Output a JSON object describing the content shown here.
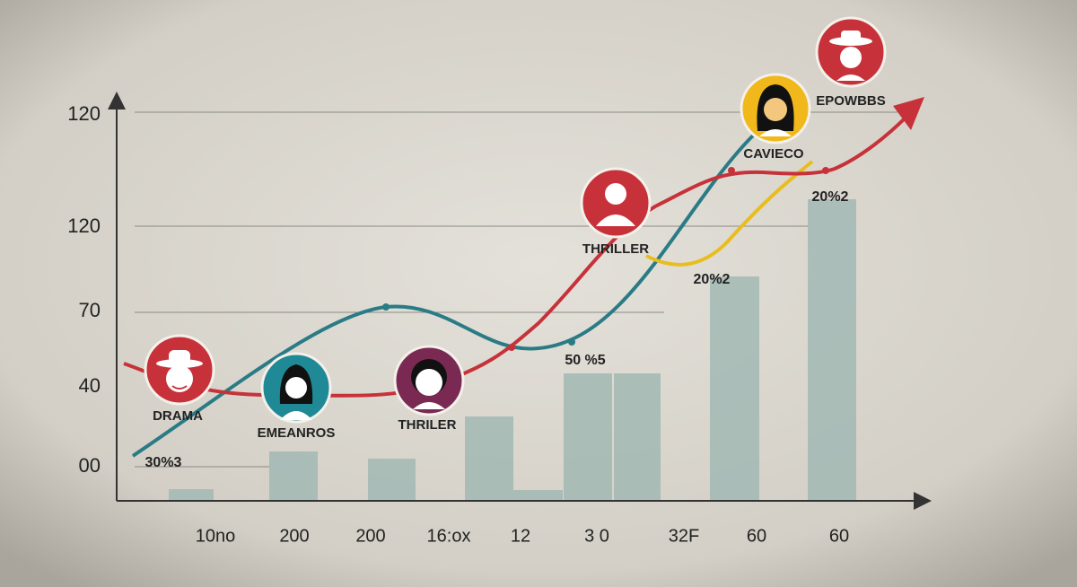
{
  "y_axis": {
    "labels": [
      "120",
      "120",
      "70",
      "40",
      "00"
    ]
  },
  "x_axis": {
    "labels": [
      "10no",
      "200",
      "200",
      "16:ox",
      "12",
      "3 0",
      "32F",
      "60",
      "60"
    ]
  },
  "nodes": [
    {
      "label": "DRAMA"
    },
    {
      "label": "EMEANROS"
    },
    {
      "label": "THRILER"
    },
    {
      "label": "THRILLER"
    },
    {
      "label": "CAVIECO"
    },
    {
      "label": "EPOWBBS"
    }
  ],
  "annotations": [
    "30%3",
    "50 %5",
    "20%2",
    "20%2"
  ]
}
